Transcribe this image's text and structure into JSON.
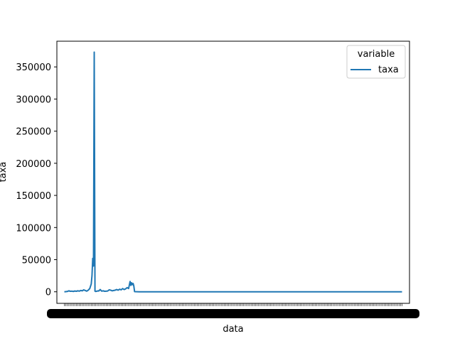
{
  "chart_data": {
    "type": "line",
    "title": "",
    "xlabel": "data",
    "ylabel": "taxa",
    "ylim": [
      -18000,
      390000
    ],
    "yticks": [
      0,
      50000,
      100000,
      150000,
      200000,
      250000,
      300000,
      350000
    ],
    "ytick_labels": [
      "0",
      "50000",
      "100000",
      "150000",
      "200000",
      "250000",
      "300000",
      "350000"
    ],
    "x_tick_labels_note": "dense overlapping date labels rendered as black bar",
    "grid": false,
    "legend": {
      "title": "variable",
      "placement": "top-right",
      "entries": [
        "taxa"
      ]
    },
    "colors": {
      "series": "#1f77b4",
      "axes": "#000000"
    },
    "series": [
      {
        "name": "taxa",
        "x": [
          0,
          4,
          6,
          8,
          10,
          12,
          14,
          16,
          18,
          20,
          22,
          24,
          26,
          28,
          30,
          32,
          34,
          36,
          37,
          38,
          39,
          40,
          41,
          42,
          43,
          44,
          45,
          46,
          48,
          50,
          52,
          54,
          56,
          58,
          60,
          62,
          64,
          66,
          68,
          70,
          72,
          74,
          76,
          78,
          80,
          82,
          84,
          86,
          88,
          89,
          90,
          91,
          92,
          93,
          94,
          100,
          150,
          200,
          250,
          300,
          350,
          400,
          452
        ],
        "values": [
          0,
          500,
          1500,
          800,
          1000,
          500,
          1200,
          800,
          1500,
          1000,
          2000,
          1500,
          3000,
          2000,
          1000,
          2500,
          5000,
          12000,
          25000,
          52000,
          40000,
          373000,
          1000,
          500,
          800,
          1000,
          1500,
          1200,
          3500,
          1000,
          1500,
          800,
          1000,
          1200,
          3000,
          2500,
          1500,
          2000,
          2500,
          3500,
          2500,
          4000,
          3000,
          5000,
          3500,
          4500,
          6500,
          5000,
          16000,
          10000,
          14000,
          11000,
          13000,
          9000,
          200,
          0,
          0,
          0,
          0,
          0,
          0,
          0,
          0
        ]
      }
    ]
  }
}
